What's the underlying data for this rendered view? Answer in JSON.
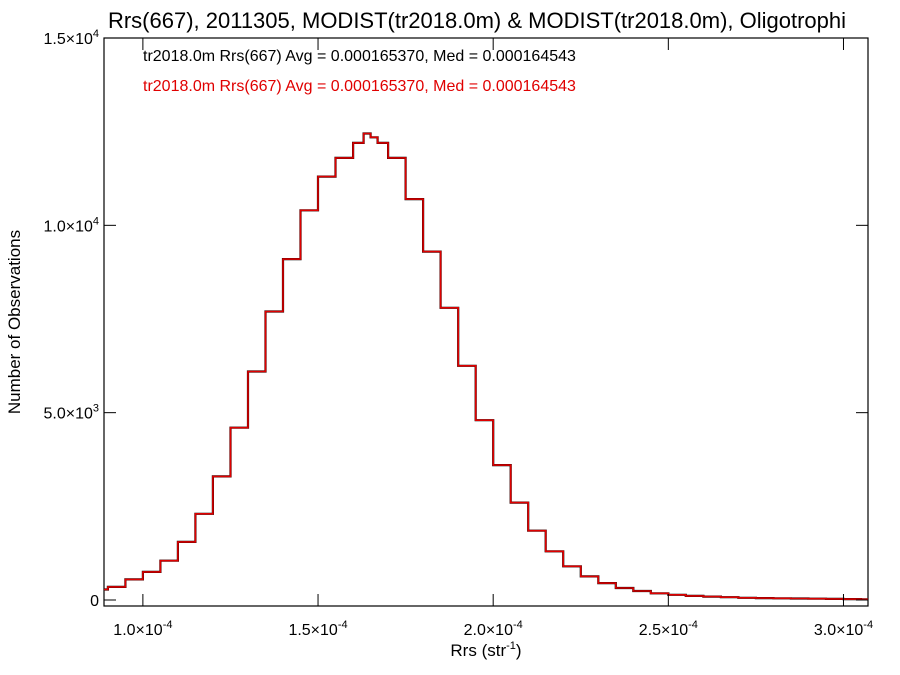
{
  "chart_data": {
    "type": "histogram",
    "title": "Rrs(667), 2011305, MODIST(tr2018.0m) & MODIST(tr2018.0m), Oligotrophi",
    "xlabel_base": "Rrs (str",
    "xlabel_sup": "-1",
    "xlabel_tail": ")",
    "ylabel": "Number of Observations",
    "xlim": [
      8.89e-05,
      0.000307
    ],
    "ylim": [
      0,
      15000
    ],
    "x_ticks": [
      {
        "value": 0.0001,
        "mantissa": "1.0×10",
        "exponent": "-4"
      },
      {
        "value": 0.00015,
        "mantissa": "1.5×10",
        "exponent": "-4"
      },
      {
        "value": 0.0002,
        "mantissa": "2.0×10",
        "exponent": "-4"
      },
      {
        "value": 0.00025,
        "mantissa": "2.5×10",
        "exponent": "-4"
      },
      {
        "value": 0.0003,
        "mantissa": "3.0×10",
        "exponent": "-4"
      }
    ],
    "y_ticks": [
      {
        "value": 0,
        "mantissa": "0",
        "exponent": ""
      },
      {
        "value": 5000,
        "mantissa": "5.0×10",
        "exponent": "3"
      },
      {
        "value": 10000,
        "mantissa": "1.0×10",
        "exponent": "4"
      },
      {
        "value": 15000,
        "mantissa": "1.5×10",
        "exponent": "4"
      }
    ],
    "annotations": [
      {
        "text": "tr2018.0m Rrs(667) Avg = 0.000165370, Med = 0.000164543",
        "color": "#000000"
      },
      {
        "text": "tr2018.0m Rrs(667) Avg = 0.000165370, Med = 0.000164543",
        "color": "#e00000"
      }
    ],
    "series": [
      {
        "color": "#000000",
        "x": [
          8.89e-05,
          9e-05,
          9.5e-05,
          0.0001,
          0.000105,
          0.00011,
          0.000115,
          0.00012,
          0.000125,
          0.00013,
          0.000135,
          0.00014,
          0.000145,
          0.00015,
          0.000155,
          0.00016,
          0.000163,
          0.000165,
          0.000167,
          0.00017,
          0.000175,
          0.00018,
          0.000185,
          0.00019,
          0.000195,
          0.0002,
          0.000205,
          0.00021,
          0.000215,
          0.00022,
          0.000225,
          0.00023,
          0.000235,
          0.00024,
          0.000245,
          0.00025,
          0.000255,
          0.00026,
          0.000265,
          0.00027,
          0.000275,
          0.00028,
          0.000285,
          0.00029,
          0.000295,
          0.0003,
          0.000305,
          0.000307
        ],
        "y": [
          280,
          350,
          550,
          750,
          1050,
          1550,
          2300,
          3300,
          4600,
          6100,
          7700,
          9100,
          10400,
          11300,
          11800,
          12200,
          12450,
          12350,
          12200,
          11800,
          10700,
          9300,
          7800,
          6250,
          4800,
          3600,
          2600,
          1850,
          1300,
          900,
          630,
          450,
          320,
          240,
          180,
          140,
          110,
          90,
          75,
          60,
          50,
          45,
          40,
          35,
          30,
          25,
          20,
          20
        ]
      },
      {
        "color": "#e00000",
        "x": [
          8.89e-05,
          9e-05,
          9.5e-05,
          0.0001,
          0.000105,
          0.00011,
          0.000115,
          0.00012,
          0.000125,
          0.00013,
          0.000135,
          0.00014,
          0.000145,
          0.00015,
          0.000155,
          0.00016,
          0.000163,
          0.000165,
          0.000167,
          0.00017,
          0.000175,
          0.00018,
          0.000185,
          0.00019,
          0.000195,
          0.0002,
          0.000205,
          0.00021,
          0.000215,
          0.00022,
          0.000225,
          0.00023,
          0.000235,
          0.00024,
          0.000245,
          0.00025,
          0.000255,
          0.00026,
          0.000265,
          0.00027,
          0.000275,
          0.00028,
          0.000285,
          0.00029,
          0.000295,
          0.0003,
          0.000305,
          0.000307
        ],
        "y": [
          280,
          350,
          550,
          750,
          1050,
          1550,
          2300,
          3300,
          4600,
          6100,
          7700,
          9100,
          10400,
          11300,
          11800,
          12200,
          12450,
          12350,
          12200,
          11800,
          10700,
          9300,
          7800,
          6250,
          4800,
          3600,
          2600,
          1850,
          1300,
          900,
          630,
          450,
          320,
          240,
          180,
          140,
          110,
          90,
          75,
          60,
          50,
          45,
          40,
          35,
          30,
          25,
          20,
          20
        ]
      }
    ],
    "grid": false,
    "legend_placement": "top-left"
  }
}
